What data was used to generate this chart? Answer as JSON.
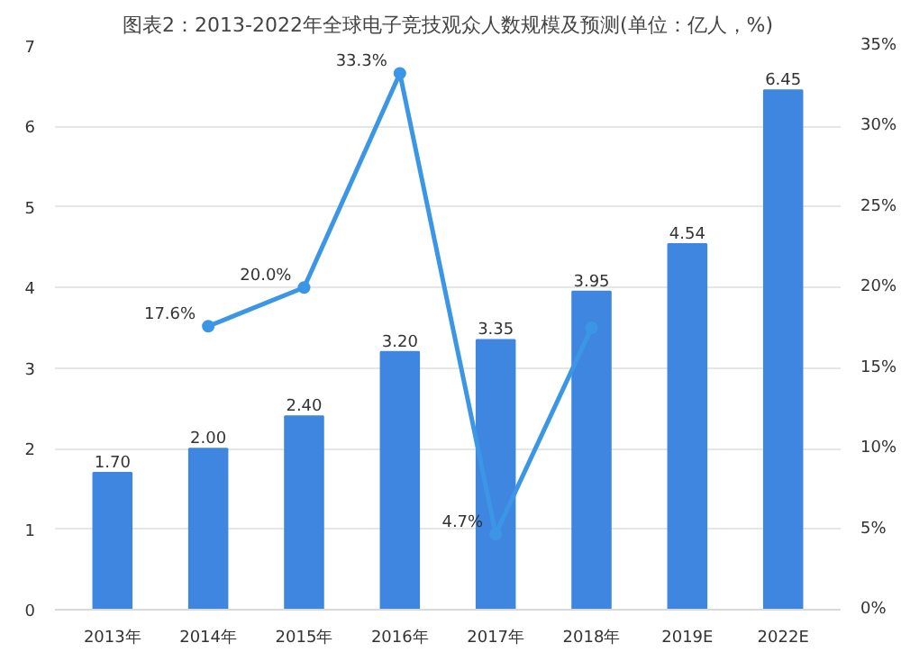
{
  "chart_data": {
    "type": "bar",
    "title": "图表2：2013-2022年全球电子竞技观众人数规模及预测(单位：亿人，%)",
    "categories": [
      "2013年",
      "2014年",
      "2015年",
      "2016年",
      "2017年",
      "2018年",
      "2019E",
      "2022E"
    ],
    "series": [
      {
        "color": "#3f86e0",
        "values": [
          1.7,
          2.0,
          2.4,
          3.2,
          3.35,
          3.95,
          4.54,
          6.45
        ],
        "value_labels": [
          "1.70",
          "2.00",
          "2.40",
          "3.20",
          "3.35",
          "3.95",
          "4.54",
          "6.45"
        ]
      },
      {
        "type": "line",
        "axis": "y2",
        "color": "#3c96e6",
        "marker": "circle",
        "values": [
          null,
          17.6,
          20.0,
          33.3,
          4.7,
          17.5,
          null,
          null
        ],
        "value_labels": [
          null,
          "17.6%",
          "20.0%",
          "33.3%",
          "4.7%",
          null,
          null,
          null
        ]
      }
    ],
    "ylim": [
      0,
      7
    ],
    "yticks": [
      0,
      1,
      2,
      3,
      4,
      5,
      6,
      7
    ],
    "y2lim": [
      0,
      35
    ],
    "y2ticks": [
      {
        "value": 0,
        "label": "0%"
      },
      {
        "value": 5,
        "label": "5%"
      },
      {
        "value": 10,
        "label": "10%"
      },
      {
        "value": 15,
        "label": "15%"
      },
      {
        "value": 20,
        "label": "20%"
      },
      {
        "value": 25,
        "label": "25%"
      },
      {
        "value": 30,
        "label": "30%"
      },
      {
        "value": 35,
        "label": "35%"
      }
    ],
    "grid": "y"
  }
}
